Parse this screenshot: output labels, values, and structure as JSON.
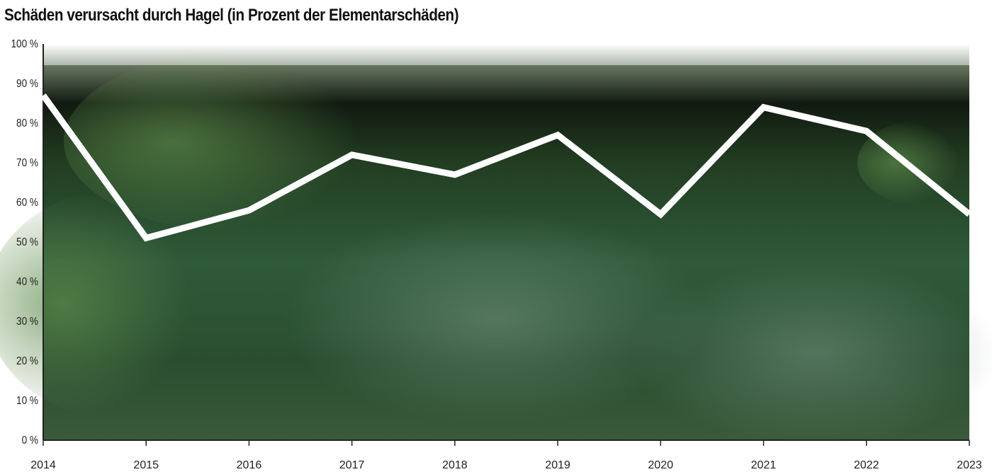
{
  "chart_data": {
    "type": "line",
    "title": "Schäden verursacht durch Hagel (in Prozent der Elementarschäden)",
    "xlabel": "",
    "ylabel": "",
    "categories": [
      "2014",
      "2015",
      "2016",
      "2017",
      "2018",
      "2019",
      "2020",
      "2021",
      "2022",
      "2023"
    ],
    "values": [
      87,
      51,
      58,
      72,
      67,
      77,
      57,
      84,
      78,
      57
    ],
    "ylim": [
      0,
      100
    ],
    "y_ticks": [
      "0 %",
      "10 %",
      "20 %",
      "30 %",
      "40 %",
      "50 %",
      "60 %",
      "70 %",
      "80 %",
      "90 %",
      "100 %"
    ],
    "grid": false,
    "line_color": "#ffffff",
    "background": "photo of hail-damaged zucchini field"
  }
}
